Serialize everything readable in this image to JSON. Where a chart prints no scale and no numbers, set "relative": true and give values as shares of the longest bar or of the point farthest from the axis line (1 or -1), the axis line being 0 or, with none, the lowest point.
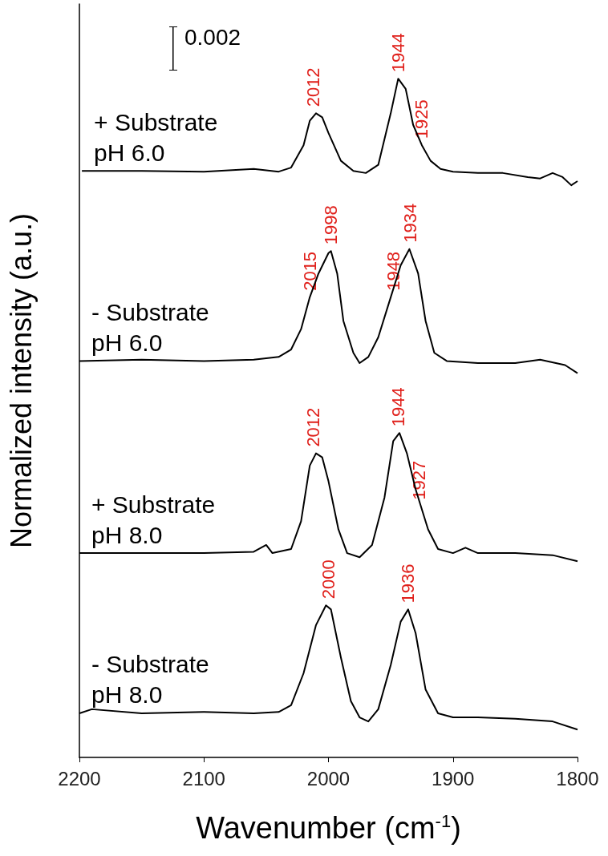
{
  "chart_data": {
    "type": "line",
    "relative": true,
    "xlabel": "Wavenumber (cm$^{-1}$)",
    "ylabel": "Normalized intensity (a.u.)",
    "xlim": [
      2200,
      1800
    ],
    "xticks": [
      2200,
      2100,
      2000,
      1900,
      1800
    ],
    "grid": false,
    "legend": false,
    "marker": "none",
    "line_style": "solid",
    "tick_labels": "x",
    "series": [
      {
        "name": "+ Substrate\npH 6.0",
        "color": "#000000",
        "x": [
          2198,
          2150,
          2100,
          2060,
          2040,
          2030,
          2020,
          2015,
          2010,
          2005,
          2000,
          1990,
          1980,
          1970,
          1960,
          1950,
          1944,
          1938,
          1932,
          1925,
          1918,
          1910,
          1900,
          1880,
          1860,
          1840,
          1830,
          1820,
          1812,
          1805,
          1800
        ],
        "values": [
          0.864,
          0.864,
          0.863,
          0.867,
          0.863,
          0.869,
          0.902,
          0.938,
          0.949,
          0.943,
          0.92,
          0.879,
          0.864,
          0.861,
          0.873,
          0.949,
          1,
          0.985,
          0.932,
          0.902,
          0.879,
          0.867,
          0.863,
          0.861,
          0.861,
          0.855,
          0.853,
          0.861,
          0.855,
          0.843,
          0.849
        ]
      },
      {
        "name": "- Substrate\npH 6.0",
        "color": "#000000",
        "x": [
          2200,
          2150,
          2100,
          2060,
          2040,
          2030,
          2022,
          2015,
          2008,
          2000,
          1998,
          1993,
          1988,
          1980,
          1975,
          1968,
          1960,
          1950,
          1942,
          1935,
          1928,
          1922,
          1915,
          1905,
          1880,
          1850,
          1830,
          1810,
          1800
        ],
        "values": [
          0.584,
          0.586,
          0.584,
          0.586,
          0.59,
          0.601,
          0.631,
          0.678,
          0.713,
          0.743,
          0.746,
          0.713,
          0.643,
          0.596,
          0.581,
          0.59,
          0.619,
          0.678,
          0.725,
          0.749,
          0.713,
          0.643,
          0.596,
          0.584,
          0.581,
          0.581,
          0.586,
          0.578,
          0.566
        ]
      },
      {
        "name": "+ Substrate\npH 8.0",
        "color": "#000000",
        "x": [
          2200,
          2150,
          2100,
          2060,
          2050,
          2045,
          2030,
          2022,
          2015,
          2010,
          2005,
          2000,
          1992,
          1985,
          1975,
          1965,
          1955,
          1948,
          1943,
          1937,
          1930,
          1920,
          1912,
          1900,
          1890,
          1880,
          1850,
          1820,
          1800
        ],
        "values": [
          0.301,
          0.301,
          0.301,
          0.303,
          0.313,
          0.301,
          0.307,
          0.348,
          0.43,
          0.448,
          0.442,
          0.407,
          0.336,
          0.301,
          0.295,
          0.313,
          0.383,
          0.466,
          0.478,
          0.448,
          0.395,
          0.336,
          0.307,
          0.301,
          0.309,
          0.301,
          0.301,
          0.298,
          0.289
        ]
      },
      {
        "name": "- Substrate\npH 8.0",
        "color": "#000000",
        "x": [
          2200,
          2190,
          2150,
          2100,
          2060,
          2040,
          2030,
          2020,
          2010,
          2002,
          1998,
          1990,
          1982,
          1975,
          1968,
          1960,
          1950,
          1942,
          1936,
          1930,
          1922,
          1912,
          1900,
          1880,
          1850,
          1820,
          1800
        ],
        "values": [
          0.065,
          0.071,
          0.065,
          0.067,
          0.065,
          0.067,
          0.077,
          0.124,
          0.195,
          0.224,
          0.218,
          0.147,
          0.083,
          0.059,
          0.053,
          0.071,
          0.136,
          0.2,
          0.218,
          0.183,
          0.1,
          0.065,
          0.059,
          0.059,
          0.057,
          0.053,
          0.041
        ]
      }
    ],
    "annotations": [
      "0.002",
      {
        "text": "2012",
        "x": 2012,
        "y": 0.949
      },
      {
        "text": "1944",
        "x": 1944,
        "y": 1
      },
      {
        "text": "1925",
        "x": 1925,
        "y": 0.902
      },
      {
        "text": "2015",
        "x": 2015,
        "y": 0.678
      },
      {
        "text": "1998",
        "x": 1998,
        "y": 0.746
      },
      {
        "text": "1948",
        "x": 1948,
        "y": 0.678
      },
      {
        "text": "1934",
        "x": 1934,
        "y": 0.749
      },
      {
        "text": "2012",
        "x": 2012,
        "y": 0.448
      },
      {
        "text": "1944",
        "x": 1944,
        "y": 0.478
      },
      {
        "text": "1927",
        "x": 1927,
        "y": 0.37
      },
      {
        "text": "2000",
        "x": 2000,
        "y": 0.224
      },
      {
        "text": "1936",
        "x": 1936,
        "y": 0.218
      }
    ]
  }
}
